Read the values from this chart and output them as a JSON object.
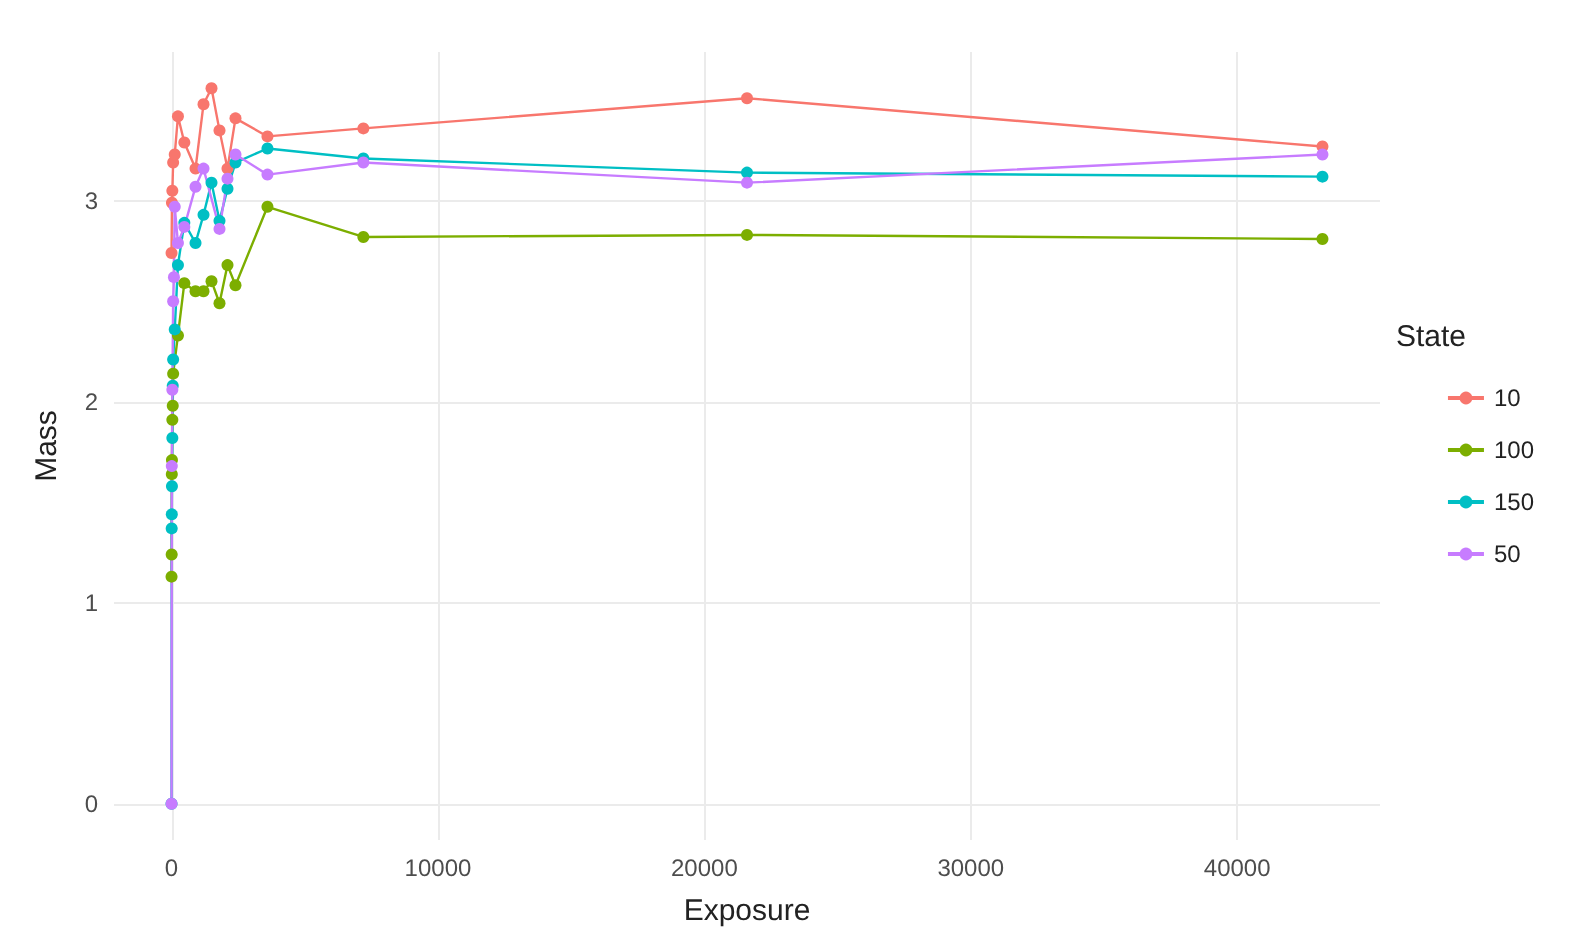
{
  "chart_data": {
    "type": "line",
    "xlabel": "Exposure",
    "ylabel": "Mass",
    "legend_title": "State",
    "legend": "right",
    "grid": true,
    "marker": "circle",
    "line_style": "solid",
    "xlim": [
      -2160,
      45360
    ],
    "ylim": [
      -0.18,
      3.74
    ],
    "xticks": [
      0,
      10000,
      20000,
      30000,
      40000
    ],
    "yticks": [
      0,
      1,
      2,
      3
    ],
    "series": [
      {
        "name": "10",
        "color": "#f8766d",
        "x": [
          0,
          15,
          30,
          60,
          120,
          240,
          480,
          900,
          1200,
          1500,
          1800,
          2100,
          2400,
          3600,
          7200,
          21600,
          43200
        ],
        "values": [
          2.74,
          2.99,
          3.05,
          3.19,
          3.23,
          3.42,
          3.29,
          3.16,
          3.48,
          3.56,
          3.35,
          3.16,
          3.41,
          3.32,
          3.36,
          3.51,
          3.27
        ]
      },
      {
        "name": "100",
        "color": "#7cae00",
        "x": [
          0,
          5,
          10,
          15,
          30,
          45,
          60,
          240,
          480,
          900,
          1200,
          1500,
          1800,
          2100,
          2400,
          3600,
          7200,
          21600,
          43200
        ],
        "values": [
          1.13,
          1.24,
          1.64,
          1.71,
          1.91,
          1.98,
          2.14,
          2.33,
          2.59,
          2.55,
          2.55,
          2.6,
          2.49,
          2.68,
          2.58,
          2.97,
          2.82,
          2.83,
          2.81
        ]
      },
      {
        "name": "150",
        "color": "#00bfc4",
        "x": [
          0,
          5,
          10,
          15,
          30,
          45,
          60,
          120,
          240,
          480,
          900,
          1200,
          1500,
          1800,
          2100,
          2400,
          3600,
          7200,
          21600,
          43200
        ],
        "values": [
          0,
          1.37,
          1.44,
          1.58,
          1.82,
          2.08,
          2.21,
          2.36,
          2.68,
          2.89,
          2.79,
          2.93,
          3.09,
          2.9,
          3.06,
          3.19,
          3.26,
          3.21,
          3.14,
          3.12
        ]
      },
      {
        "name": "50",
        "color": "#c77cff",
        "x": [
          0,
          10,
          30,
          60,
          90,
          120,
          240,
          480,
          900,
          1200,
          1800,
          2100,
          2400,
          3600,
          7200,
          21600,
          43200
        ],
        "values": [
          0,
          1.68,
          2.06,
          2.5,
          2.62,
          2.97,
          2.79,
          2.87,
          3.07,
          3.16,
          2.86,
          3.11,
          3.23,
          3.13,
          3.19,
          3.09,
          3.23
        ]
      }
    ]
  }
}
